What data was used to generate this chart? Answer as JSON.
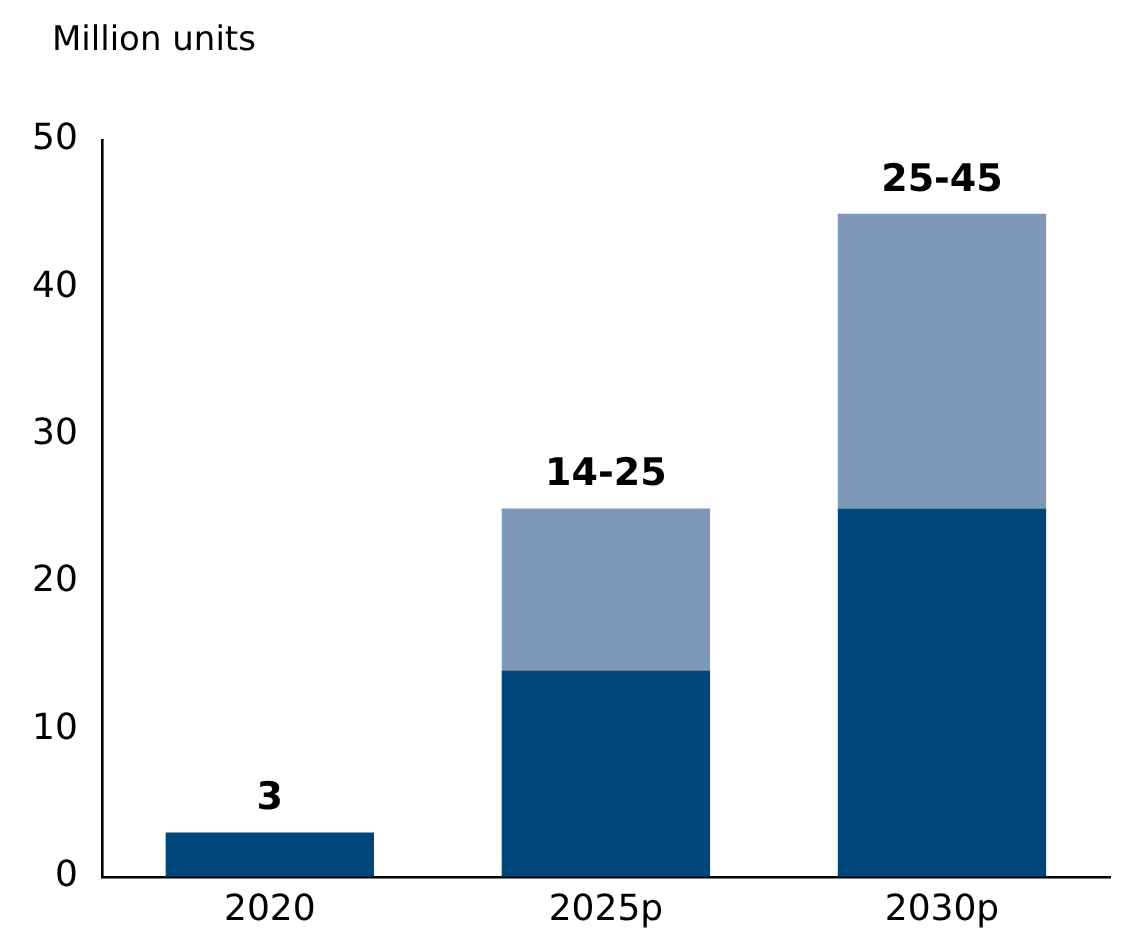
{
  "chart_data": {
    "type": "bar",
    "ylabel": "Million units",
    "categories": [
      "2020",
      "2025p",
      "2030p"
    ],
    "stacked": true,
    "series": [
      {
        "color": "#00467a",
        "values": [
          3,
          14,
          25
        ]
      },
      {
        "color": "#7c98b6",
        "values": [
          0,
          11,
          20
        ]
      }
    ],
    "ylim": [
      0,
      50
    ],
    "yticks": [
      0,
      10,
      20,
      30,
      40,
      50
    ],
    "grid": false,
    "legend": false,
    "totals": [
      "3",
      "14-25",
      "25-45"
    ]
  }
}
